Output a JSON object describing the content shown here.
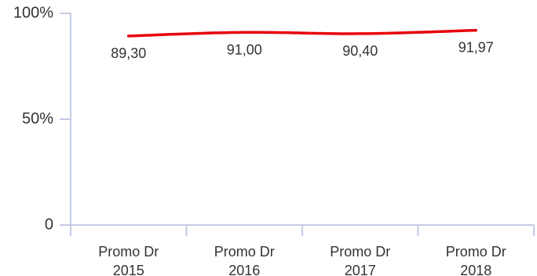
{
  "chart_data": {
    "type": "line",
    "categories": [
      [
        "Promo Dr",
        "2015"
      ],
      [
        "Promo Dr",
        "2016"
      ],
      [
        "Promo Dr",
        "2017"
      ],
      [
        "Promo Dr",
        "2018"
      ]
    ],
    "series": [
      {
        "values": [
          89.3,
          91.0,
          90.4,
          91.97
        ],
        "data_labels": [
          "89,30",
          "91,00",
          "90,40",
          "91,97"
        ],
        "color": "#e8000b"
      }
    ],
    "y_ticks": [
      {
        "value": 0,
        "label": "0"
      },
      {
        "value": 50,
        "label": "50%"
      },
      {
        "value": 100,
        "label": "100%"
      }
    ],
    "ylim": [
      0,
      100
    ],
    "grid": false,
    "legend": "none",
    "axis_color": "#c5cbe6"
  }
}
